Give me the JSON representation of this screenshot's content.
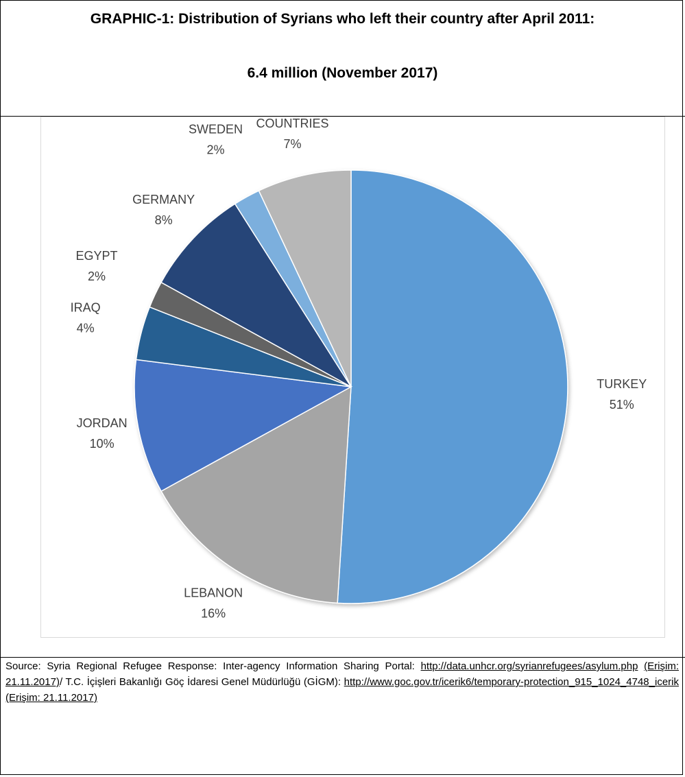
{
  "title": {
    "line1": "GRAPHIC-1: Distribution of Syrians who left their country after April 2011:",
    "line2": "6.4 million (November 2017)"
  },
  "chart_data": {
    "type": "pie",
    "start_angle_deg": 0,
    "direction": "clockwise",
    "slices": [
      {
        "label": "TURKEY",
        "value": 51,
        "display": "51%",
        "color": "#5b9bd5"
      },
      {
        "label": "LEBANON",
        "value": 16,
        "display": "16%",
        "color": "#a5a5a5"
      },
      {
        "label": "JORDAN",
        "value": 10,
        "display": "10%",
        "color": "#4472c4"
      },
      {
        "label": "IRAQ",
        "value": 4,
        "display": "4%",
        "color": "#255e91"
      },
      {
        "label": "EGYPT",
        "value": 2,
        "display": "2%",
        "color": "#636363"
      },
      {
        "label": "GERMANY",
        "value": 8,
        "display": "8%",
        "color": "#264478"
      },
      {
        "label": "SWEDEN",
        "value": 2,
        "display": "2%",
        "color": "#7cafdd"
      },
      {
        "label": "OTHER COUNTRIES",
        "value": 7,
        "display": "7%",
        "color": "#b7b7b7"
      }
    ]
  },
  "source": {
    "prefix": "Source: Syria Regional Refugee Response: Inter-agency Information Sharing Portal: ",
    "link1": "http://data.unhcr.org/syrianrefugees/asylum.php",
    "access1": "(Erişim: 21.11.2017)",
    "middle": "/ T.C. İçişleri Bakanlığı Göç İdaresi Genel Müdürlüğü (GİGM): ",
    "link2": "http://www.goc.gov.tr/icerik6/temporary-protection_915_1024_4748_icerik",
    "access2": "(Erişim: 21.11.2017)"
  }
}
